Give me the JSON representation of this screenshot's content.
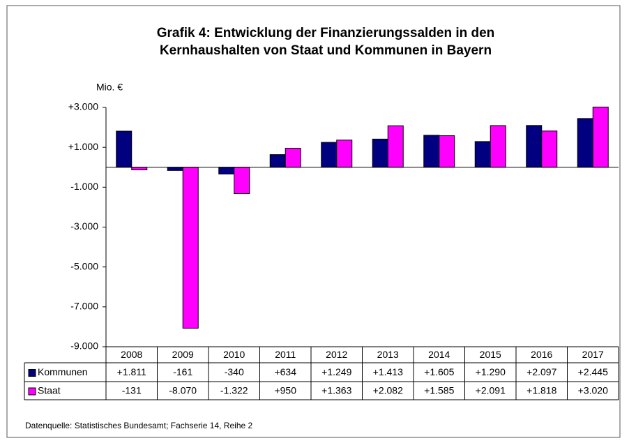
{
  "chart_data": {
    "type": "bar",
    "title": "Grafik 4: Entwicklung der Finanzierungssalden in den",
    "subtitle": "Kernhaushalten von Staat und Kommunen in Bayern",
    "y_label": "Mio. €",
    "source": "Datenquelle: Statistisches Bundesamt; Fachserie 14, Reihe 2",
    "categories": [
      "2008",
      "2009",
      "2010",
      "2011",
      "2012",
      "2013",
      "2014",
      "2015",
      "2016",
      "2017"
    ],
    "series": [
      {
        "name": "Kommunen",
        "color": "#000080",
        "values": [
          1811,
          -161,
          -340,
          634,
          1249,
          1413,
          1605,
          1290,
          2097,
          2445
        ],
        "value_labels": [
          "+1.811",
          "-161",
          "-340",
          "+634",
          "+1.249",
          "+1.413",
          "+1.605",
          "+1.290",
          "+2.097",
          "+2.445"
        ]
      },
      {
        "name": "Staat",
        "color": "#ff00ff",
        "values": [
          -131,
          -8070,
          -1322,
          950,
          1363,
          2082,
          1585,
          2091,
          1818,
          3020
        ],
        "value_labels": [
          "-131",
          "-8.070",
          "-1.322",
          "+950",
          "+1.363",
          "+2.082",
          "+1.585",
          "+2.091",
          "+1.818",
          "+3.020"
        ]
      }
    ],
    "ylim": [
      -9000,
      3000
    ],
    "yticks": [
      {
        "value": 3000,
        "label": "+3.000"
      },
      {
        "value": 1000,
        "label": "+1.000"
      },
      {
        "value": -1000,
        "label": "-1.000"
      },
      {
        "value": -3000,
        "label": "-3.000"
      },
      {
        "value": -5000,
        "label": "-5.000"
      },
      {
        "value": -7000,
        "label": "-7.000"
      },
      {
        "value": -9000,
        "label": "-9.000"
      }
    ],
    "grid": false
  }
}
